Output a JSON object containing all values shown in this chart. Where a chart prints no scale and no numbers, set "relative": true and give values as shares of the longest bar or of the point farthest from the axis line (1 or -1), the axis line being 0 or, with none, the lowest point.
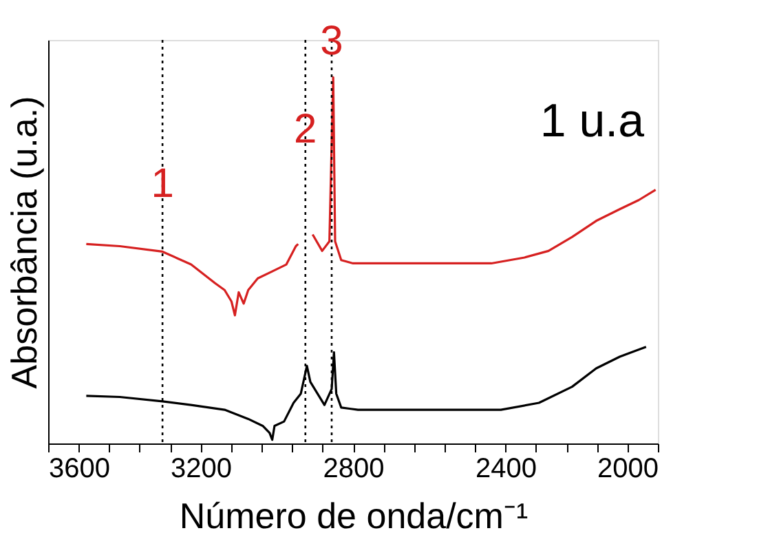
{
  "chart_data": {
    "type": "line",
    "relative": true,
    "xlabel": "Número de onda/cm⁻¹",
    "ylabel": "Absorbância (u.a.)",
    "xlim": [
      3600,
      2000
    ],
    "xticks": [
      3600,
      {
        "value": 3520,
        "label": null
      },
      {
        "value": 3440,
        "label": null
      },
      {
        "value": 3360,
        "label": null
      },
      {
        "value": 3280,
        "label": null
      },
      3200,
      {
        "value": 3120,
        "label": null
      },
      {
        "value": 3040,
        "label": null
      },
      {
        "value": 2960,
        "label": null
      },
      {
        "value": 2880,
        "label": null
      },
      2800,
      {
        "value": 2720,
        "label": null
      },
      {
        "value": 2640,
        "label": null
      },
      {
        "value": 2560,
        "label": null
      },
      {
        "value": 2480,
        "label": null
      },
      2400,
      {
        "value": 2320,
        "label": null
      },
      {
        "value": 2240,
        "label": null
      },
      {
        "value": 2160,
        "label": null
      },
      {
        "value": 2080,
        "label": null
      },
      2000
    ],
    "grid": false,
    "marker": "none",
    "line_style": "solid",
    "series": [
      {
        "color": "#d62020",
        "x": [
          3500,
          3412,
          3300,
          3225,
          3162,
          3137,
          3119,
          3110,
          3100,
          3087,
          3075,
          3050,
          3012,
          2975,
          2950,
          2944,
          2925,
          2906,
          2881,
          2862,
          2852,
          2847,
          2831,
          2800,
          2662,
          2437,
          2350,
          2287,
          2225,
          2162,
          2100,
          2050,
          2006
        ],
        "values": [
          0.545,
          0.539,
          0.524,
          0.489,
          0.438,
          0.419,
          0.388,
          0.35,
          0.413,
          0.382,
          0.419,
          0.451,
          0.47,
          0.489,
          0.539,
          0.545,
          null,
          0.571,
          0.526,
          0.552,
          1.0,
          0.552,
          0.501,
          0.492,
          0.492,
          0.492,
          0.508,
          0.526,
          0.564,
          0.608,
          0.64,
          0.665,
          0.693
        ]
      },
      {
        "color": "#000000",
        "x": [
          3500,
          3412,
          3300,
          3225,
          3137,
          3075,
          3037,
          3019,
          3012,
          3006,
          2981,
          2956,
          2937,
          2921,
          2912,
          2875,
          2856,
          2850,
          2844,
          2831,
          2787,
          2412,
          2312,
          2225,
          2162,
          2100,
          2031
        ],
        "values": [
          0.13,
          0.127,
          0.115,
          0.105,
          0.092,
          0.067,
          0.048,
          0.029,
          0.01,
          0.048,
          0.06,
          0.111,
          0.136,
          0.212,
          0.168,
          0.105,
          0.149,
          0.249,
          0.136,
          0.098,
          0.092,
          0.092,
          0.111,
          0.155,
          0.205,
          0.237,
          0.264
        ]
      }
    ],
    "ref_lines": [
      {
        "axis": "x",
        "value": 3300,
        "color": "#000000",
        "line_style": "dotted"
      },
      {
        "axis": "x",
        "value": 2925,
        "color": "#000000",
        "line_style": "dotted"
      },
      {
        "axis": "x",
        "value": 2856,
        "color": "#000000",
        "line_style": "dotted"
      }
    ],
    "annotations": [
      {
        "text": "1",
        "x": 3300,
        "y": 0.65
      },
      {
        "text": "2",
        "x": 2925,
        "y": 0.8
      },
      {
        "text": "3",
        "x": 2856,
        "y": 1.04
      },
      "1 u.a"
    ]
  }
}
